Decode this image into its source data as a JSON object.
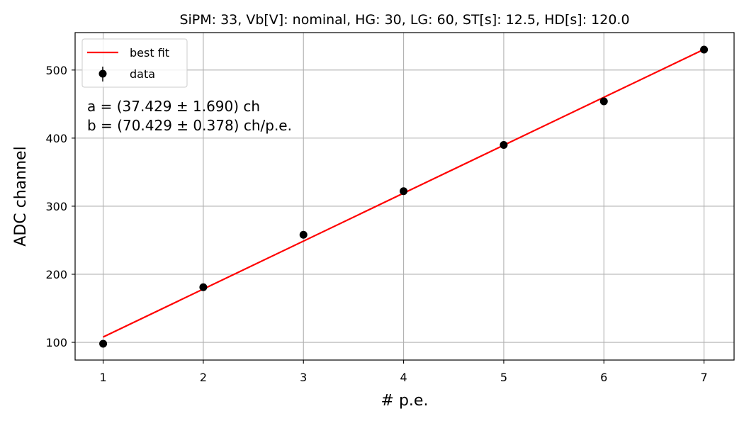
{
  "chart_data": {
    "type": "scatter",
    "title": "SiPM: 33, Vb[V]: nominal, HG: 30, LG: 60, ST[s]: 12.5, HD[s]: 120.0",
    "xlabel": "# p.e.",
    "ylabel": "ADC channel",
    "xlim": [
      0.72,
      7.3
    ],
    "ylim": [
      74,
      555
    ],
    "xticks": [
      1,
      2,
      3,
      4,
      5,
      6,
      7
    ],
    "yticks": [
      100,
      200,
      300,
      400,
      500
    ],
    "grid": true,
    "legend_position": "top-left",
    "series": [
      {
        "name": "best fit",
        "kind": "line",
        "color": "#ff0000",
        "x": [
          1,
          7
        ],
        "y": [
          107.858,
          530.432
        ]
      },
      {
        "name": "data",
        "kind": "errorbar-points",
        "color": "#000000",
        "x": [
          1,
          2,
          3,
          4,
          5,
          6,
          7
        ],
        "y": [
          98,
          181,
          258,
          322,
          390,
          454,
          530
        ]
      }
    ],
    "annotations": [
      "a = (37.429 ± 1.690) ch",
      "b = (70.429 ± 0.378) ch/p.e."
    ]
  }
}
